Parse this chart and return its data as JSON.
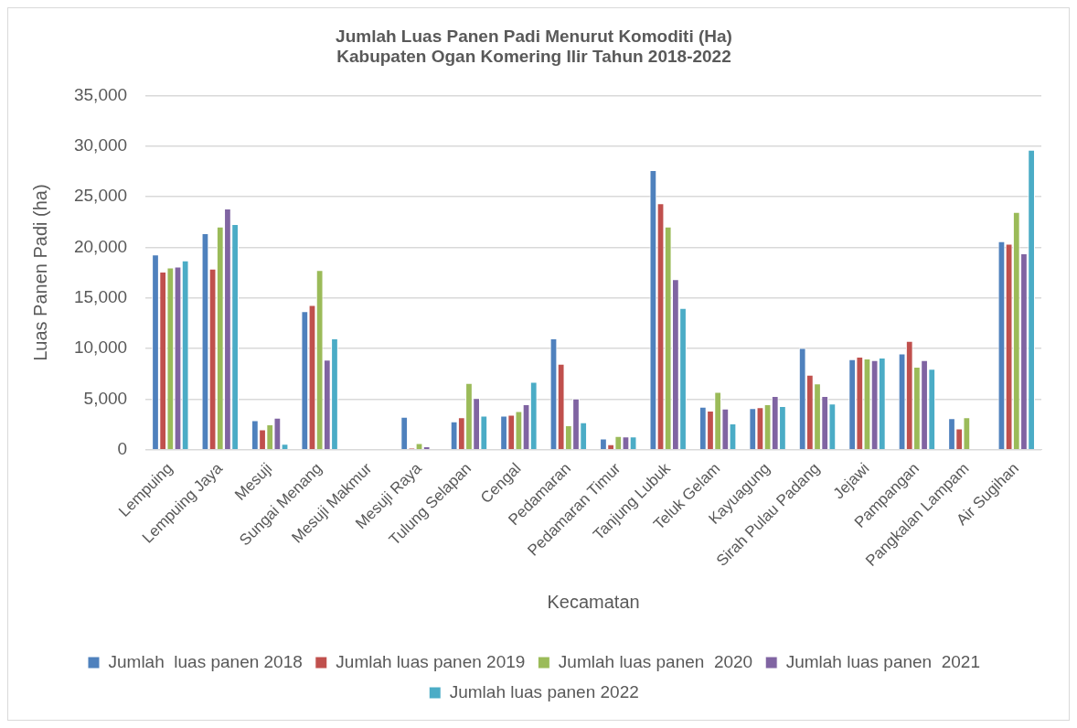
{
  "chart_data": {
    "type": "bar",
    "title": "Jumlah Luas Panen Padi Menurut Komoditi (Ha)\nKabupaten Ogan Komering Ilir Tahun 2018-2022",
    "xlabel": "Kecamatan",
    "ylabel": "Luas Panen Padi (ha)",
    "categories": [
      "Lempuing",
      "Lempuing Jaya",
      "Mesuji",
      "Sungai Menang",
      "Mesuji Makmur",
      "Mesuji Raya",
      "Tulung Selapan",
      "Cengal",
      "Pedamaran",
      "Pedamaran Timur",
      "Tanjung Lubuk",
      "Teluk Gelam",
      "Kayuagung",
      "Sirah Pulau Padang",
      "Jejawi",
      "Pampangan",
      "Pangkalan Lampam",
      "Air Sugihan"
    ],
    "series": [
      {
        "name": "Jumlah  luas panen 2018",
        "color": "#4f81bd",
        "values": [
          19300,
          21400,
          2900,
          13700,
          null,
          3250,
          2800,
          3350,
          11000,
          1100,
          27650,
          4250,
          4100,
          10050,
          8950,
          9500,
          3100,
          20600
        ]
      },
      {
        "name": "Jumlah luas panen 2019",
        "color": "#c0504d",
        "values": [
          17600,
          17900,
          2000,
          14300,
          null,
          140,
          3200,
          3450,
          8500,
          530,
          24350,
          3850,
          4200,
          7400,
          9200,
          10750,
          2100,
          20350
        ]
      },
      {
        "name": "Jumlah luas panen  2020",
        "color": "#9bbb59",
        "values": [
          18000,
          22050,
          2500,
          17750,
          null,
          640,
          6600,
          3800,
          2400,
          1350,
          22050,
          5700,
          4500,
          6550,
          9000,
          8200,
          3200,
          23500
        ]
      },
      {
        "name": "Jumlah luas panen  2021",
        "color": "#8064a2",
        "values": [
          18100,
          23850,
          3150,
          8900,
          null,
          320,
          5100,
          4500,
          5050,
          1300,
          16850,
          4050,
          5300,
          5300,
          8850,
          8850,
          null,
          19400
        ]
      },
      {
        "name": "Jumlah luas panen 2022",
        "color": "#4bacc6",
        "values": [
          18700,
          22300,
          570,
          11000,
          null,
          null,
          3350,
          6700,
          2700,
          1300,
          14000,
          2600,
          4300,
          4550,
          9100,
          8000,
          null,
          29650
        ]
      }
    ],
    "ylim": [
      0,
      35000
    ],
    "yticks": [
      {
        "value": 0,
        "label": "0"
      },
      {
        "value": 5000,
        "label": "5,000"
      },
      {
        "value": 10000,
        "label": "10,000"
      },
      {
        "value": 15000,
        "label": "15,000"
      },
      {
        "value": 20000,
        "label": "20,000"
      },
      {
        "value": 25000,
        "label": "25,000"
      },
      {
        "value": 30000,
        "label": "30,000"
      },
      {
        "value": 35000,
        "label": "35,000"
      }
    ],
    "grid": "y",
    "legend": "bottom"
  }
}
